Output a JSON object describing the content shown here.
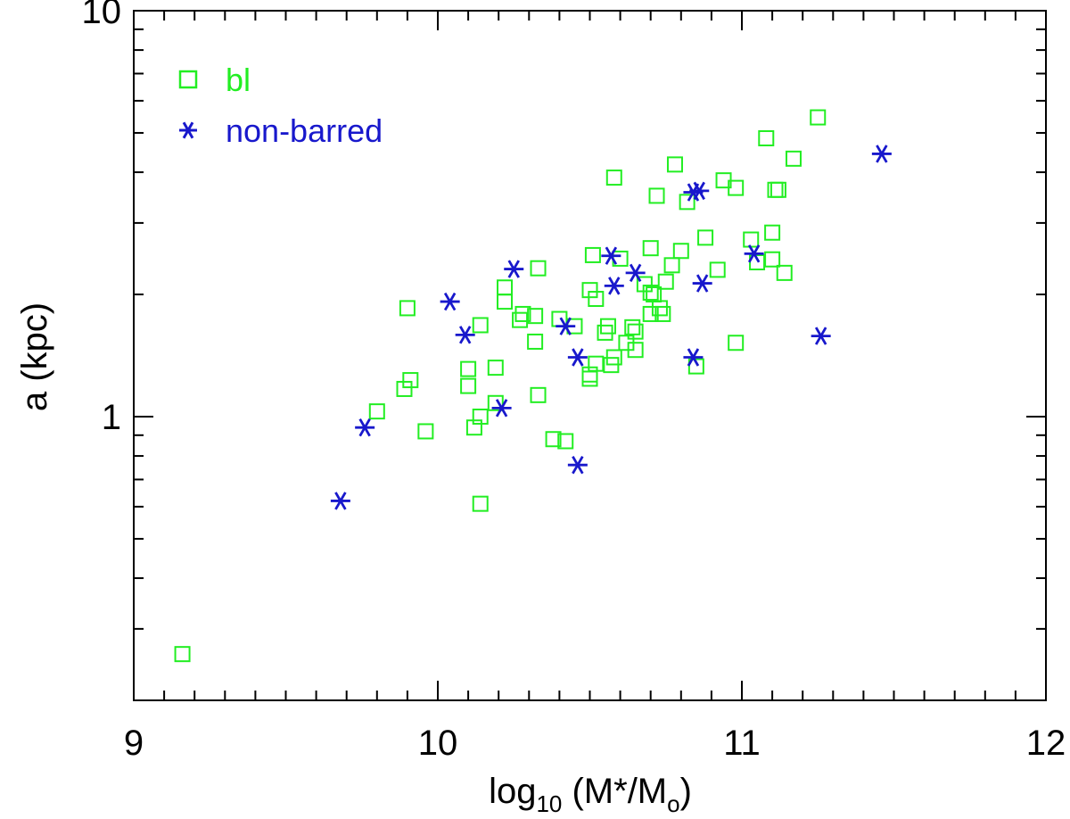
{
  "chart_data": {
    "type": "scatter",
    "title": "",
    "xlabel_main": "log",
    "xlabel_sub": "10",
    "xlabel_rest_1": " (M*/M",
    "xlabel_sub2": "o",
    "xlabel_rest_2": ")",
    "ylabel": "a (kpc)",
    "xlim": [
      9,
      12
    ],
    "ylim": [
      0.2,
      10
    ],
    "yscale": "log",
    "xticks": [
      "9",
      "10",
      "11",
      "12"
    ],
    "yticks": [
      "1",
      "10"
    ],
    "legend_position": "top-left",
    "series": [
      {
        "name": "bl",
        "marker": "square",
        "color": "#22ee22",
        "points": [
          [
            9.16,
            0.26
          ],
          [
            9.8,
            1.03
          ],
          [
            9.89,
            1.17
          ],
          [
            9.9,
            1.85
          ],
          [
            9.91,
            1.23
          ],
          [
            9.96,
            0.92
          ],
          [
            10.1,
            1.31
          ],
          [
            10.1,
            1.19
          ],
          [
            10.12,
            0.94
          ],
          [
            10.14,
            1.0
          ],
          [
            10.14,
            1.68
          ],
          [
            10.14,
            0.61
          ],
          [
            10.19,
            1.32
          ],
          [
            10.19,
            1.08
          ],
          [
            10.22,
            2.08
          ],
          [
            10.22,
            1.92
          ],
          [
            10.27,
            1.73
          ],
          [
            10.28,
            1.79
          ],
          [
            10.33,
            2.32
          ],
          [
            10.32,
            1.53
          ],
          [
            10.32,
            1.77
          ],
          [
            10.33,
            1.13
          ],
          [
            10.38,
            0.88
          ],
          [
            10.42,
            0.87
          ],
          [
            10.4,
            1.74
          ],
          [
            10.45,
            1.67
          ],
          [
            10.5,
            1.27
          ],
          [
            10.5,
            1.24
          ],
          [
            10.52,
            1.35
          ],
          [
            10.5,
            2.05
          ],
          [
            10.51,
            2.5
          ],
          [
            10.52,
            1.95
          ],
          [
            10.55,
            1.61
          ],
          [
            10.56,
            1.67
          ],
          [
            10.57,
            1.34
          ],
          [
            10.58,
            1.4
          ],
          [
            10.58,
            3.88
          ],
          [
            10.6,
            2.45
          ],
          [
            10.62,
            1.52
          ],
          [
            10.64,
            1.66
          ],
          [
            10.65,
            1.62
          ],
          [
            10.65,
            1.46
          ],
          [
            10.68,
            2.12
          ],
          [
            10.7,
            2.02
          ],
          [
            10.7,
            1.79
          ],
          [
            10.7,
            2.6
          ],
          [
            10.71,
            2.0
          ],
          [
            10.72,
            3.5
          ],
          [
            10.73,
            1.85
          ],
          [
            10.74,
            1.79
          ],
          [
            10.75,
            2.15
          ],
          [
            10.77,
            2.36
          ],
          [
            10.78,
            4.18
          ],
          [
            10.8,
            2.56
          ],
          [
            10.82,
            3.38
          ],
          [
            10.85,
            1.33
          ],
          [
            10.88,
            2.76
          ],
          [
            10.92,
            2.3
          ],
          [
            10.94,
            3.82
          ],
          [
            10.98,
            3.66
          ],
          [
            10.98,
            1.52
          ],
          [
            11.03,
            2.73
          ],
          [
            11.05,
            2.4
          ],
          [
            11.08,
            4.85
          ],
          [
            11.1,
            2.84
          ],
          [
            11.1,
            2.44
          ],
          [
            11.11,
            3.62
          ],
          [
            11.12,
            3.62
          ],
          [
            11.14,
            2.26
          ],
          [
            11.17,
            4.32
          ],
          [
            11.25,
            5.46
          ]
        ]
      },
      {
        "name": "non-barred",
        "marker": "asterisk",
        "color": "#1818cc",
        "points": [
          [
            9.68,
            0.62
          ],
          [
            9.76,
            0.94
          ],
          [
            10.04,
            1.92
          ],
          [
            10.09,
            1.59
          ],
          [
            10.21,
            1.05
          ],
          [
            10.25,
            2.31
          ],
          [
            10.42,
            1.67
          ],
          [
            10.46,
            0.76
          ],
          [
            10.46,
            1.4
          ],
          [
            10.57,
            2.49
          ],
          [
            10.58,
            2.1
          ],
          [
            10.65,
            2.26
          ],
          [
            10.84,
            1.4
          ],
          [
            10.84,
            3.57
          ],
          [
            10.86,
            3.6
          ],
          [
            10.87,
            2.13
          ],
          [
            11.04,
            2.52
          ],
          [
            11.26,
            1.58
          ],
          [
            11.46,
            4.44
          ]
        ]
      }
    ]
  }
}
